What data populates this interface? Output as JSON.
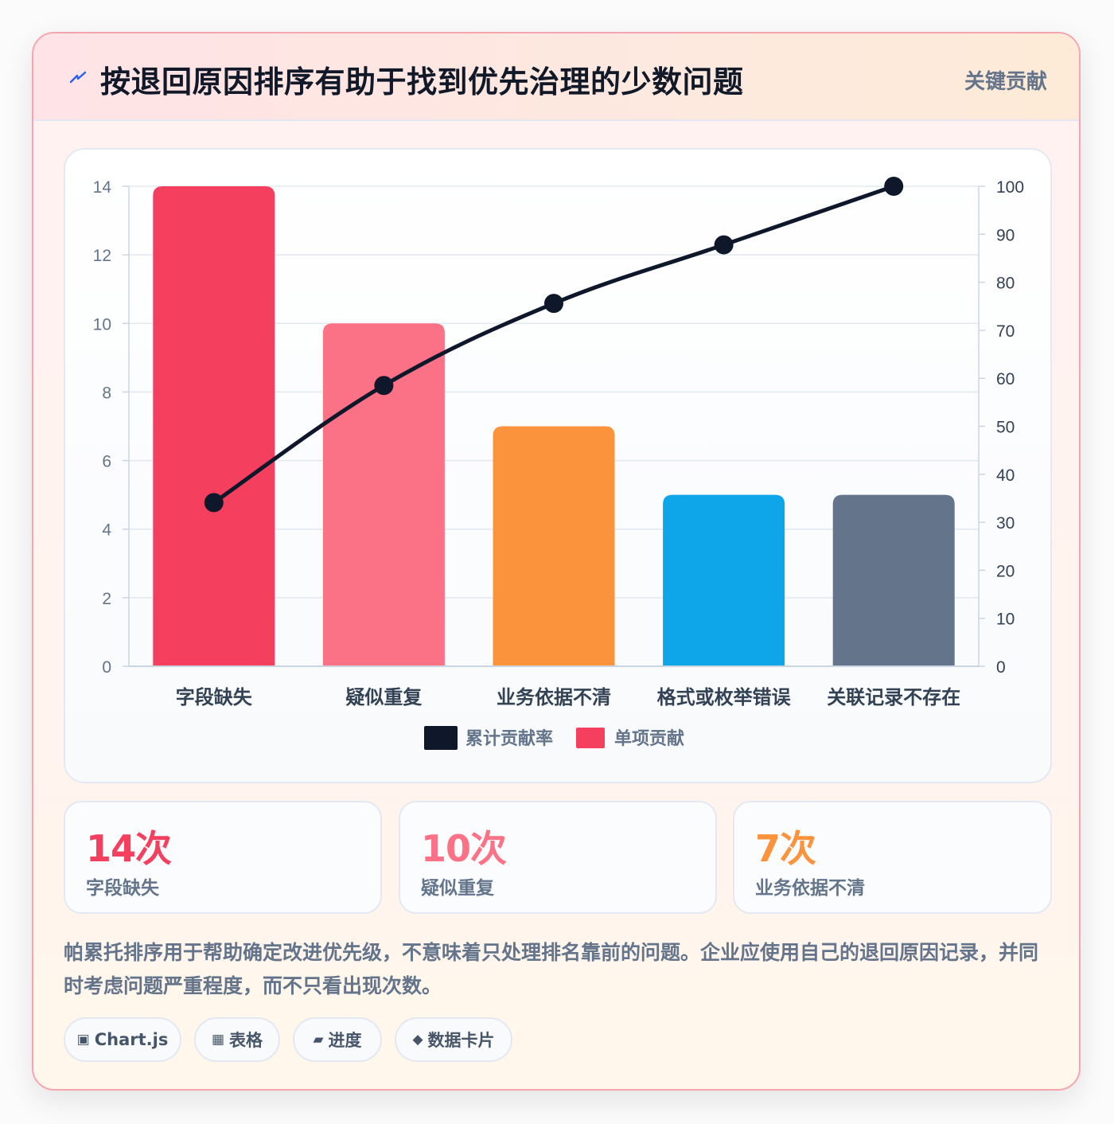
{
  "header": {
    "title": "按退回原因排序有助于找到优先治理的少数问题",
    "badge": "关键贡献",
    "icon": "lightning-icon"
  },
  "chart_data": {
    "type": "bar",
    "categories": [
      "字段缺失",
      "疑似重复",
      "业务依据不清",
      "格式或枚举错误",
      "关联记录不存在"
    ],
    "series": [
      {
        "name": "单项贡献",
        "type": "bar",
        "axis": "left",
        "values": [
          14,
          10,
          7,
          5,
          5
        ],
        "colors": [
          "#f43f5e",
          "#fb7185",
          "#fb923c",
          "#0ea5e9",
          "#64748b"
        ]
      },
      {
        "name": "累计贡献率",
        "type": "line",
        "axis": "right",
        "values": [
          34.1,
          58.5,
          75.6,
          87.8,
          100
        ],
        "color": "#0f172a"
      }
    ],
    "y_left": {
      "min": 0,
      "max": 14,
      "ticks": [
        0,
        2,
        4,
        6,
        8,
        10,
        12,
        14
      ]
    },
    "y_right": {
      "min": 0,
      "max": 100,
      "ticks": [
        0,
        10,
        20,
        30,
        40,
        50,
        60,
        70,
        80,
        90,
        100
      ]
    },
    "grid": true,
    "legend_position": "bottom"
  },
  "stats": [
    {
      "value": "14次",
      "label": "字段缺失",
      "color": "#f43f5e"
    },
    {
      "value": "10次",
      "label": "疑似重复",
      "color": "#fb7185"
    },
    {
      "value": "7次",
      "label": "业务依据不清",
      "color": "#fb923c"
    }
  ],
  "note": "帕累托排序用于帮助确定改进优先级，不意味着只处理排名靠前的问题。企业应使用自己的退回原因记录，并同时考虑问题严重程度，而不只看出现次数。",
  "chips": [
    {
      "icon": "▣",
      "icon_name": "chart-icon",
      "label": "Chart.js"
    },
    {
      "icon": "▦",
      "icon_name": "table-icon",
      "label": "表格"
    },
    {
      "icon": "▰",
      "icon_name": "progress-icon",
      "label": "进度"
    },
    {
      "icon": "◆",
      "icon_name": "card-icon",
      "label": "数据卡片"
    }
  ]
}
